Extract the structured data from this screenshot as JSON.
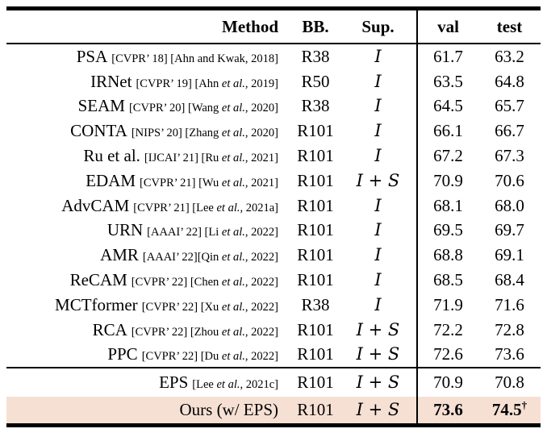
{
  "table": {
    "highlight_color": "#f6e0d4",
    "rule_color": "#000000",
    "columns": {
      "method": "Method",
      "bb": "BB.",
      "sup": "Sup.",
      "val": "val",
      "test": "test"
    },
    "rows": [
      {
        "method": "PSA",
        "cite_pre": "[CVPR’ 18] [Ahn and Kwak, 2018]",
        "cite_italic": "",
        "cite_post": "",
        "bb": "R38",
        "sup": "I",
        "val": "61.7",
        "test": "63.2"
      },
      {
        "method": "IRNet",
        "cite_pre": "[CVPR’ 19] [Ahn ",
        "cite_italic": "et al.",
        "cite_post": ", 2019]",
        "bb": "R50",
        "sup": "I",
        "val": "63.5",
        "test": "64.8"
      },
      {
        "method": "SEAM",
        "cite_pre": "[CVPR’ 20] [Wang ",
        "cite_italic": "et al.",
        "cite_post": ", 2020]",
        "bb": "R38",
        "sup": "I",
        "val": "64.5",
        "test": "65.7"
      },
      {
        "method": "CONTA",
        "cite_pre": "[NIPS’ 20] [Zhang ",
        "cite_italic": "et al.",
        "cite_post": ", 2020]",
        "bb": "R101",
        "sup": "I",
        "val": "66.1",
        "test": "66.7"
      },
      {
        "method": "Ru et al.",
        "cite_pre": "[IJCAI’ 21] [Ru ",
        "cite_italic": "et al.",
        "cite_post": ", 2021]",
        "bb": "R101",
        "sup": "I",
        "val": "67.2",
        "test": "67.3"
      },
      {
        "method": "EDAM",
        "cite_pre": "[CVPR’ 21] [Wu ",
        "cite_italic": "et al.",
        "cite_post": ", 2021]",
        "bb": "R101",
        "sup": "I + S",
        "val": "70.9",
        "test": "70.6"
      },
      {
        "method": "AdvCAM",
        "cite_pre": "[CVPR’ 21] [Lee ",
        "cite_italic": "et al.",
        "cite_post": ", 2021a]",
        "bb": "R101",
        "sup": "I",
        "val": "68.1",
        "test": "68.0"
      },
      {
        "method": "URN",
        "cite_pre": "[AAAI’ 22] [Li ",
        "cite_italic": "et al.",
        "cite_post": ", 2022]",
        "bb": "R101",
        "sup": "I",
        "val": "69.5",
        "test": "69.7"
      },
      {
        "method": "AMR",
        "cite_pre": "[AAAI’ 22][Qin ",
        "cite_italic": "et al.",
        "cite_post": ", 2022]",
        "bb": "R101",
        "sup": "I",
        "val": "68.8",
        "test": "69.1"
      },
      {
        "method": "ReCAM",
        "cite_pre": "[CVPR’ 22] [Chen ",
        "cite_italic": "et al.",
        "cite_post": ", 2022]",
        "bb": "R101",
        "sup": "I",
        "val": "68.5",
        "test": "68.4"
      },
      {
        "method": "MCTformer",
        "cite_pre": "[CVPR’ 22] [Xu ",
        "cite_italic": "et al.",
        "cite_post": ", 2022]",
        "bb": "R38",
        "sup": "I",
        "val": "71.9",
        "test": "71.6"
      },
      {
        "method": "RCA",
        "cite_pre": "[CVPR’ 22] [Zhou ",
        "cite_italic": "et al.",
        "cite_post": ", 2022]",
        "bb": "R101",
        "sup": "I + S",
        "val": "72.2",
        "test": "72.8"
      },
      {
        "method": "PPC",
        "cite_pre": "[CVPR’ 22] [Du ",
        "cite_italic": "et al.",
        "cite_post": ", 2022]",
        "bb": "R101",
        "sup": "I + S",
        "val": "72.6",
        "test": "73.6"
      },
      {
        "method": "EPS",
        "cite_pre": "[Lee ",
        "cite_italic": "et al.",
        "cite_post": ", 2021c]",
        "bb": "R101",
        "sup": "I + S",
        "val": "70.9",
        "test": "70.8"
      },
      {
        "method": "Ours (w/ EPS)",
        "cite_pre": "",
        "cite_italic": "",
        "cite_post": "",
        "bb": "R101",
        "sup": "I + S",
        "val": "73.6",
        "test": "74.5",
        "test_sup": "†"
      }
    ]
  }
}
